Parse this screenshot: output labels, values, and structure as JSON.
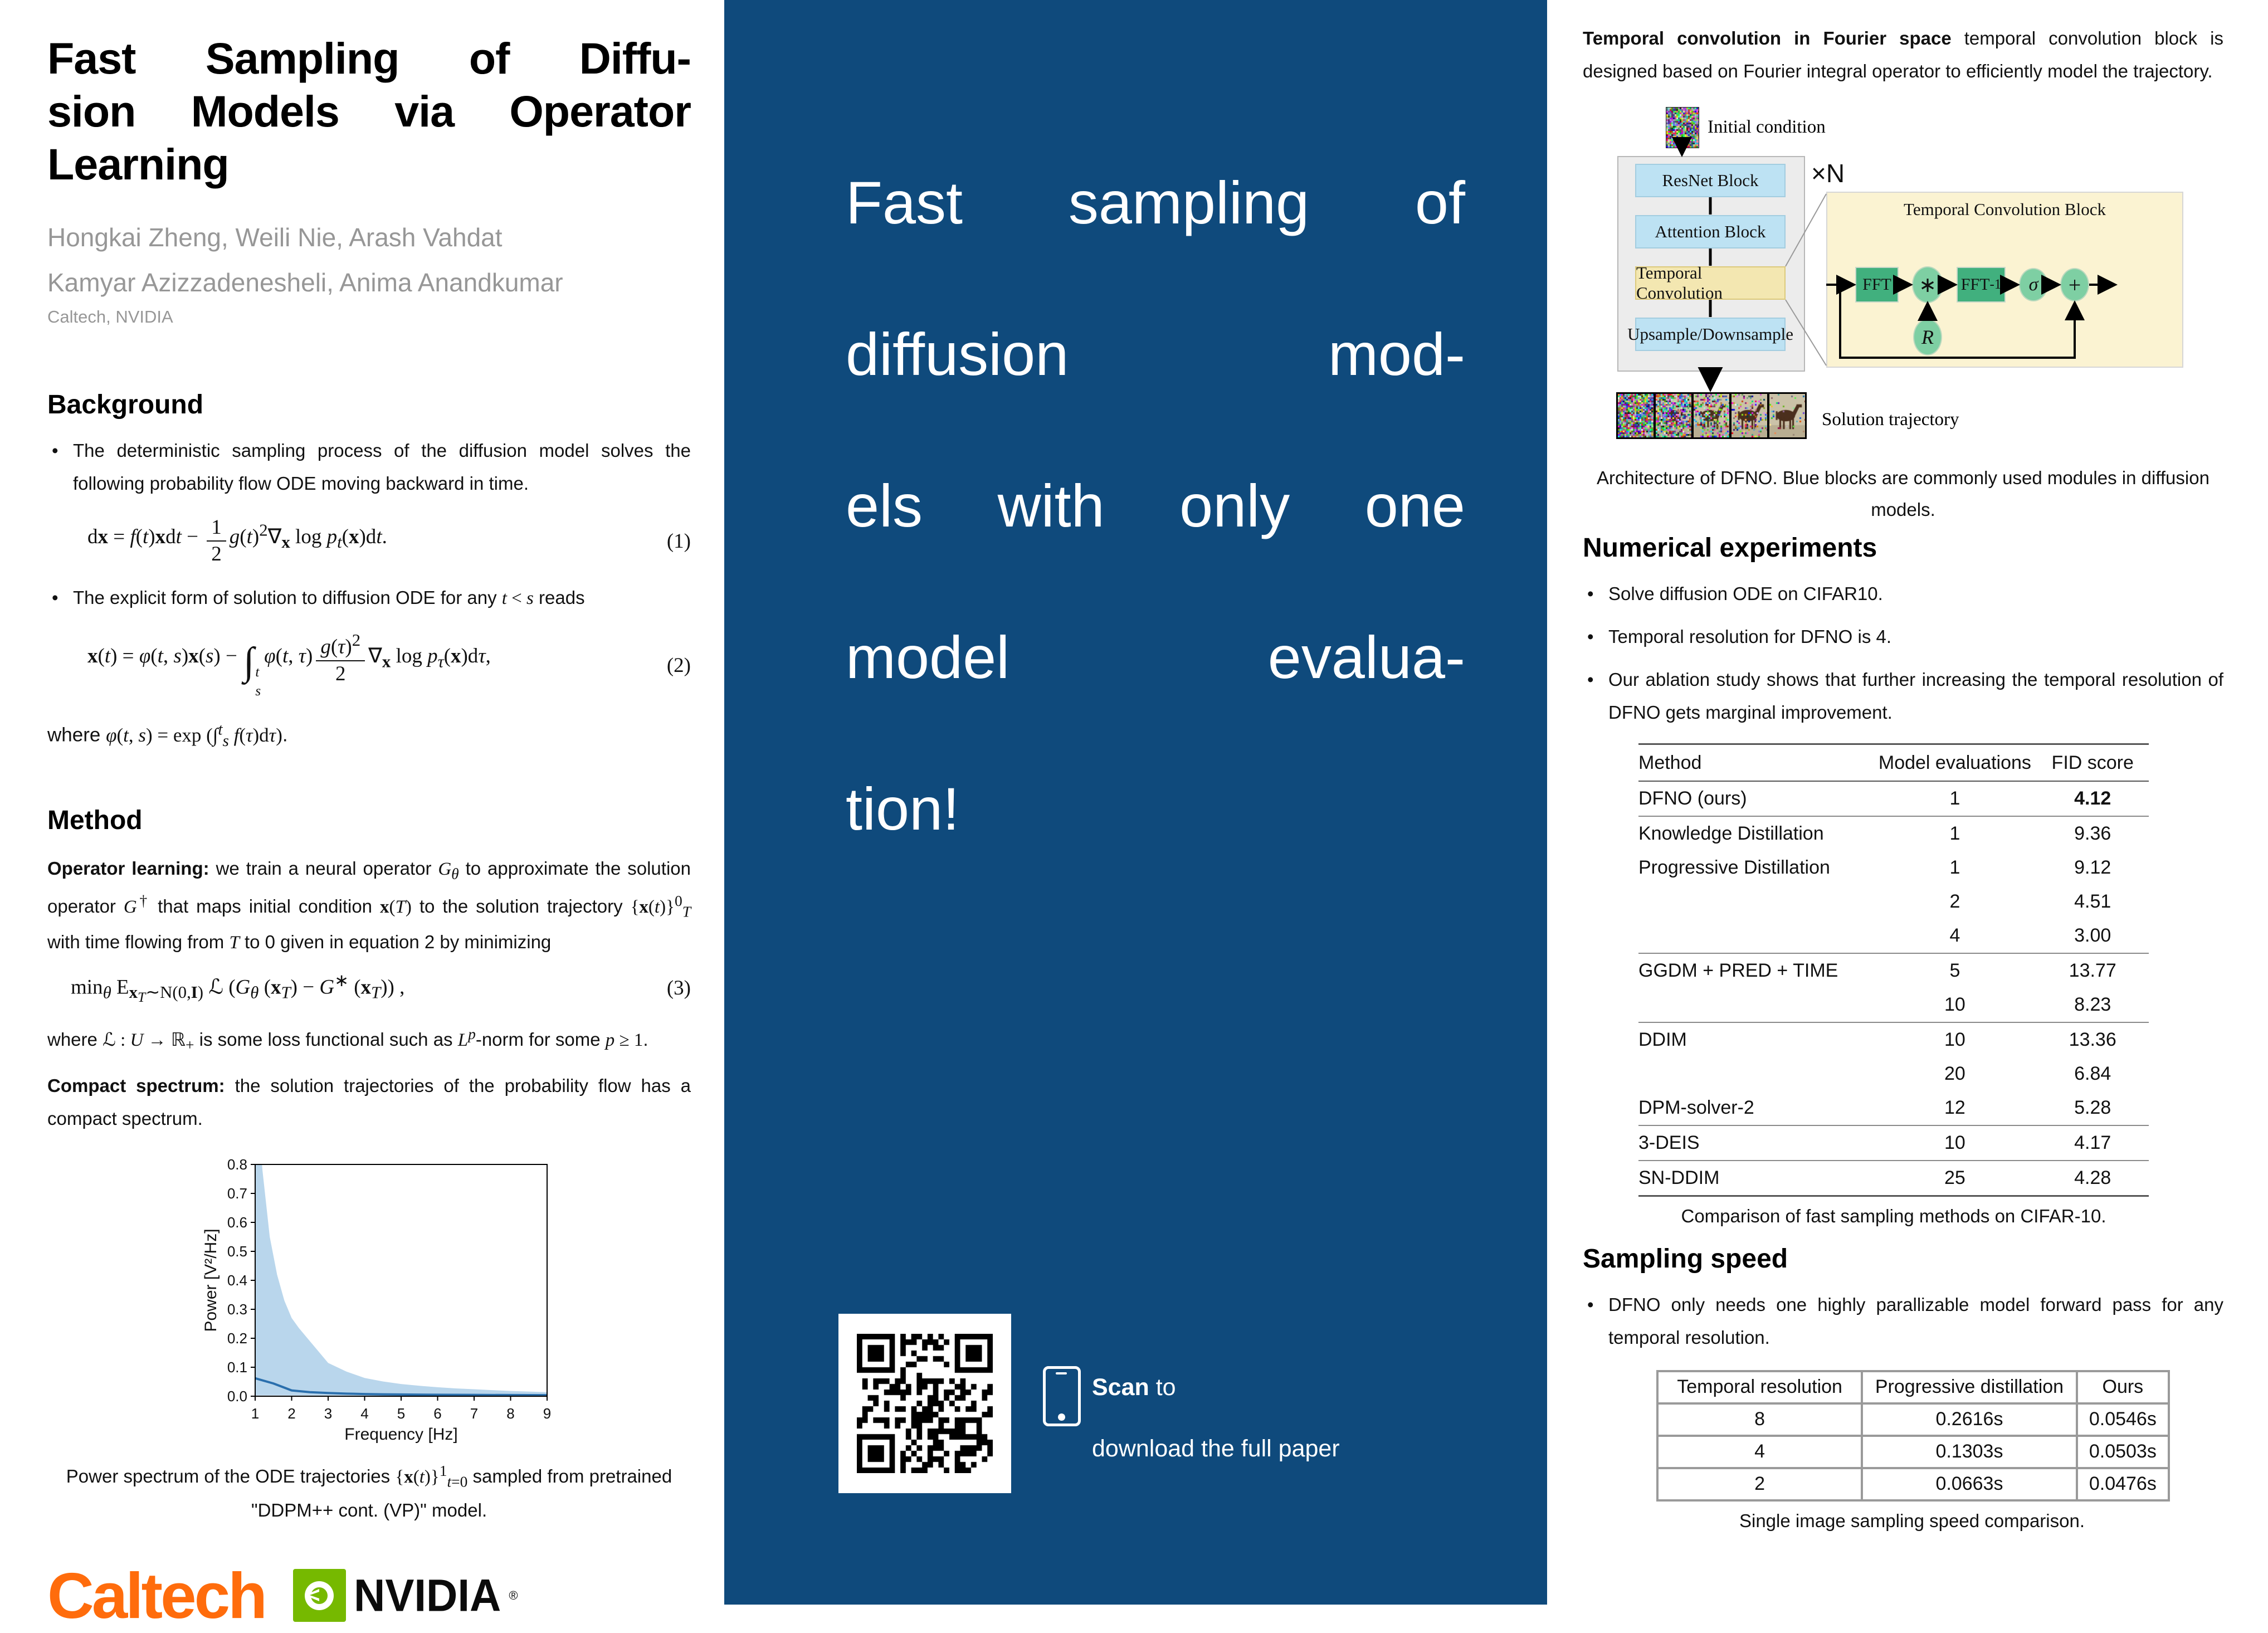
{
  "colors": {
    "mid_background": "#0f4a7c",
    "caltech_orange": "#ff6c0c",
    "nvidia_green": "#76b900",
    "block_blue": "#bde2f3",
    "block_yellow": "#f3e7b1",
    "panel_cream": "#fbf3d2",
    "green_dark": "#41b07e",
    "green_light": "#7ecfa3",
    "band_blue": "#b9d6ec",
    "line_blue": "#2a6fad"
  },
  "left": {
    "title_lines": [
      "Fast Sampling of Diffu-",
      "sion Models via Operator",
      "Learning"
    ],
    "authors_line1": "Hongkai Zheng, Weili Nie, Arash Vahdat",
    "authors_line2": "Kamyar Azizzadenesheli, Anima Anandkumar",
    "affiliation": "Caltech, NVIDIA",
    "background": {
      "heading": "Background",
      "bullet1": "The deterministic sampling process of the diffusion model solves the following probability flow ODE moving backward in time.",
      "eq1_html": "d<b>x</b> = <i>f</i>(<i>t</i>)<b>x</b>d<i>t</i> − <span class=\"frac\"><span class=\"fnum\">1</span><span class=\"fden\">2</span></span><i>g</i>(<i>t</i>)<sup>2</sup>∇<sub><b>x</b></sub> log <i>p</i><sub><i>t</i></sub>(<b>x</b>)d<i>t</i>.",
      "eq1_tag": "(1)",
      "bullet2_html": "The explicit form of solution to diffusion ODE for any <span class=\"mathy\"><i>t</i> &lt; <i>s</i></span> reads",
      "eq2_html": "<b>x</b>(<i>t</i>) = <i>φ</i>(<i>t</i>, <i>s</i>)<b>x</b>(<i>s</i>) − <span class=\"bigint\">∫</span><span class=\"ilims\"><span><i>t</i></span><span><i>s</i></span></span><i>φ</i>(<i>t</i>, <i>τ</i>)<span class=\"frac\"><span class=\"fnum\"><i>g</i>(<i>τ</i>)<sup>2</sup></span><span class=\"fden\">2</span></span>∇<sub><b>x</b></sub> log <i>p</i><sub><i>τ</i></sub>(<b>x</b>)d<i>τ</i>,",
      "eq2_tag": "(2)",
      "eq2_where_html": "where <span class=\"mathy\"><i>φ</i>(<i>t</i>, <i>s</i>) = exp (∫<sup><i>t</i></sup><sub><i>s</i></sub> <i>f</i>(<i>τ</i>)d<i>τ</i>)</span>."
    },
    "method": {
      "heading": "Method",
      "p1_bold": "Operator learning:",
      "p1_rest_html": " we train a neural operator <span class=\"mathy\"><i>G</i><sub><i>θ</i></sub></span> to approximate the solution operator <span class=\"mathy\"><i>G</i><sup>†</sup></span> that maps initial condition <span class=\"mathy\"><b>x</b>(<i>T</i>)</span> to the solution trajectory <span class=\"mathy\">{<b>x</b>(<i>t</i>)}<sup>0</sup><sub><i>T</i></sub></span> with time flowing from <span class=\"mathy\"><i>T</i></span> to 0 given in equation 2 by minimizing",
      "eq3_html": "min<sub><i>θ</i></sub> E<sub><b>x</b><sub><i>T</i></sub>∼N(0,<b>I</b>)</sub> ℒ (<i>G</i><sub><i>θ</i></sub> (<b>x</b><sub><i>T</i></sub>) − <i>G</i><sup>∗</sup> (<b>x</b><sub><i>T</i></sub>)) ,",
      "eq3_tag": "(3)",
      "p2_html": "where <span class=\"mathy\">ℒ : <i>U</i> → ℝ<sub>+</sub></span> is some loss functional such as <span class=\"mathy\"><i>L</i><sup><i>p</i></sup></span>-norm for some <span class=\"mathy\"><i>p</i> ≥ 1</span>.",
      "p3_bold": "Compact spectrum:",
      "p3_rest": " the solution trajectories of the probability flow has a compact spectrum."
    },
    "figure_caption_html": "Power spectrum of the ODE trajectories <span class=\"mathy\">{<b>x</b>(<i>t</i>)}<sup>1</sup><sub><i>t</i>=0</sub></span> sampled from pretrained \"DDPM++ cont. (VP)\" model.",
    "logos": {
      "caltech": "Caltech",
      "nvidia": "NVIDIA",
      "registered": "®"
    }
  },
  "middle": {
    "headline_lines": [
      "Fast sampling of",
      "diffusion mod-",
      "els with only one",
      "model evalua-",
      "tion!"
    ],
    "scan_bold": "Scan",
    "scan_rest": " to",
    "scan_line2": "download the full paper"
  },
  "right": {
    "p1_bold": "Temporal convolution in Fourier space",
    "p1_rest": " temporal convolution block is designed based on Fourier integral operator to efficiently model the trajectory.",
    "diagram": {
      "initial_condition": "Initial condition",
      "xn": "×N",
      "blocks": [
        "ResNet Block",
        "Attention Block",
        "Temporal Convolution",
        "Upsample/Downsample"
      ],
      "panel_title": "Temporal Convolution Block",
      "fft": "FFT",
      "star": "∗",
      "ifft_html": "FFT<sup>-1</sup>",
      "sigma": "σ",
      "plus": "+",
      "r": "R",
      "solution_trajectory": "Solution trajectory",
      "caption": "Architecture of DFNO. Blue blocks are commonly used modules in diffusion models."
    },
    "numerical": {
      "heading": "Numerical experiments",
      "bullets": [
        "Solve diffusion ODE on CIFAR10.",
        "Temporal resolution for DFNO is 4.",
        "Our ablation study shows that further increasing the temporal resolution of DFNO gets marginal improvement."
      ],
      "table": {
        "headers": [
          "Method",
          "Model evaluations",
          "FID score"
        ],
        "rows": [
          {
            "method": "DFNO (ours)",
            "evals": "1",
            "fid": "4.12",
            "bold_fid": true,
            "rule_after": true
          },
          {
            "method": "Knowledge Distillation",
            "evals": "1",
            "fid": "9.36"
          },
          {
            "method": "Progressive Distillation",
            "evals": "1",
            "fid": "9.12"
          },
          {
            "method": "",
            "evals": "2",
            "fid": "4.51"
          },
          {
            "method": "",
            "evals": "4",
            "fid": "3.00",
            "rule_after": true
          },
          {
            "method": "GGDM + PRED + TIME",
            "evals": "5",
            "fid": "13.77"
          },
          {
            "method": "",
            "evals": "10",
            "fid": "8.23",
            "rule_after": true
          },
          {
            "method": "DDIM",
            "evals": "10",
            "fid": "13.36"
          },
          {
            "method": "",
            "evals": "20",
            "fid": "6.84"
          },
          {
            "method": "DPM-solver-2",
            "evals": "12",
            "fid": "5.28",
            "rule_after": true
          },
          {
            "method": "3-DEIS",
            "evals": "10",
            "fid": "4.17",
            "rule_after": true
          },
          {
            "method": "SN-DDIM",
            "evals": "25",
            "fid": "4.28",
            "rule_after": true,
            "bottom": true
          }
        ],
        "caption": "Comparison of fast sampling methods on CIFAR-10."
      }
    },
    "speed": {
      "heading": "Sampling speed",
      "bullet": "DFNO only needs one highly parallizable model forward pass for any temporal resolution.",
      "table": {
        "headers": [
          "Temporal resolution",
          "Progressive distillation",
          "Ours"
        ],
        "rows": [
          [
            "8",
            "0.2616s",
            "0.0546s"
          ],
          [
            "4",
            "0.1303s",
            "0.0503s"
          ],
          [
            "2",
            "0.0663s",
            "0.0476s"
          ]
        ],
        "caption": "Single image sampling speed comparison."
      }
    }
  },
  "chart_data": {
    "type": "area",
    "title": "",
    "xlabel": "Frequency [Hz]",
    "ylabel": "Power [V²/Hz]",
    "xlim": [
      1,
      9
    ],
    "ylim": [
      0,
      0.8
    ],
    "xticks": [
      1,
      2,
      3,
      4,
      5,
      6,
      7,
      8,
      9
    ],
    "yticks": [
      0.0,
      0.1,
      0.2,
      0.3,
      0.4,
      0.5,
      0.6,
      0.7,
      0.8
    ],
    "grid": false,
    "legend": "none",
    "series": [
      {
        "name": "spectrum band upper bound",
        "x": [
          1,
          1.1,
          1.2,
          1.4,
          1.6,
          1.8,
          2,
          2.2,
          2.5,
          3,
          3.5,
          4,
          4.5,
          5,
          5.5,
          6,
          6.5,
          7,
          7.5,
          8,
          8.5,
          9
        ],
        "values": [
          1.3,
          0.95,
          0.78,
          0.55,
          0.42,
          0.33,
          0.27,
          0.235,
          0.19,
          0.115,
          0.085,
          0.063,
          0.051,
          0.042,
          0.036,
          0.031,
          0.027,
          0.024,
          0.021,
          0.018,
          0.016,
          0.014
        ]
      },
      {
        "name": "spectrum band lower bound",
        "x": [
          1,
          9
        ],
        "values": [
          0.003,
          0.001
        ]
      },
      {
        "name": "mean power",
        "x": [
          1,
          1.5,
          2,
          2.5,
          3,
          3.5,
          4,
          4.5,
          5,
          6,
          7,
          8,
          9
        ],
        "values": [
          0.062,
          0.044,
          0.02,
          0.014,
          0.011,
          0.009,
          0.0075,
          0.0065,
          0.006,
          0.005,
          0.0045,
          0.004,
          0.0035
        ]
      }
    ]
  }
}
